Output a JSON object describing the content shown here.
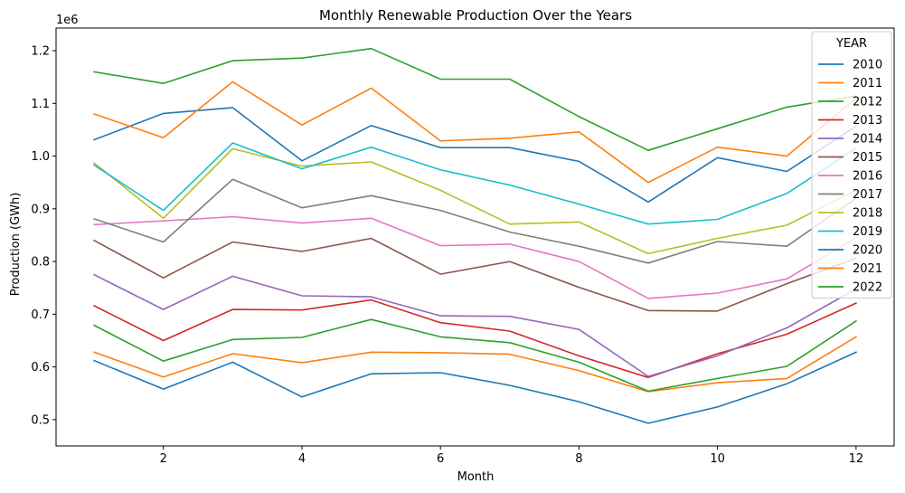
{
  "chart_data": {
    "type": "line",
    "title": "Monthly Renewable Production Over the Years",
    "xlabel": "Month",
    "ylabel": "Production (GWh)",
    "y_offset_label": "1e6",
    "legend_title": "YEAR",
    "legend_position": "top-right",
    "grid": false,
    "xlim": [
      0.45,
      12.55
    ],
    "ylim": [
      450000,
      1243000
    ],
    "x_ticks": [
      2,
      4,
      6,
      8,
      10,
      12
    ],
    "x_tick_labels": [
      "2",
      "4",
      "6",
      "8",
      "10",
      "12"
    ],
    "y_ticks": [
      500000,
      600000,
      700000,
      800000,
      900000,
      1000000,
      1100000,
      1200000
    ],
    "y_tick_labels": [
      "0.5",
      "0.6",
      "0.7",
      "0.8",
      "0.9",
      "1.0",
      "1.1",
      "1.2"
    ],
    "x": [
      1,
      2,
      3,
      4,
      5,
      6,
      7,
      8,
      9,
      10,
      11,
      12
    ],
    "series": [
      {
        "name": "2010",
        "color": "#1f77b4",
        "values": [
          612000,
          558000,
          609000,
          543000,
          587000,
          589000,
          565000,
          534000,
          493000,
          524000,
          568000,
          628000
        ]
      },
      {
        "name": "2011",
        "color": "#ff7f0e",
        "values": [
          628000,
          581000,
          625000,
          608000,
          628000,
          627000,
          624000,
          593000,
          553000,
          570000,
          578000,
          657000
        ]
      },
      {
        "name": "2012",
        "color": "#2ca02c",
        "values": [
          679000,
          611000,
          652000,
          656000,
          690000,
          657000,
          646000,
          609000,
          554000,
          578000,
          601000,
          687000
        ]
      },
      {
        "name": "2013",
        "color": "#d62728",
        "values": [
          716000,
          650000,
          709000,
          708000,
          727000,
          684000,
          668000,
          621000,
          580000,
          625000,
          662000,
          721000
        ]
      },
      {
        "name": "2014",
        "color": "#9467bd",
        "values": [
          775000,
          709000,
          772000,
          735000,
          733000,
          697000,
          696000,
          671000,
          582000,
          621000,
          674000,
          748000
        ]
      },
      {
        "name": "2015",
        "color": "#8c564b",
        "values": [
          840000,
          769000,
          837000,
          819000,
          844000,
          776000,
          800000,
          751000,
          707000,
          706000,
          758000,
          806000
        ]
      },
      {
        "name": "2016",
        "color": "#e377c2",
        "values": [
          870000,
          877000,
          885000,
          873000,
          882000,
          830000,
          833000,
          800000,
          730000,
          740000,
          767000,
          845000
        ]
      },
      {
        "name": "2017",
        "color": "#7f7f7f",
        "values": [
          881000,
          837000,
          956000,
          902000,
          925000,
          897000,
          856000,
          829000,
          797000,
          838000,
          829000,
          920000
        ]
      },
      {
        "name": "2018",
        "color": "#bcbd22",
        "values": [
          987000,
          882000,
          1014000,
          981000,
          989000,
          935000,
          871000,
          875000,
          815000,
          844000,
          869000,
          935000
        ]
      },
      {
        "name": "2019",
        "color": "#17becf",
        "values": [
          983000,
          897000,
          1025000,
          976000,
          1017000,
          974000,
          945000,
          909000,
          871000,
          880000,
          929000,
          1015000
        ]
      },
      {
        "name": "2020",
        "color": "#1f77b4",
        "values": [
          1031000,
          1081000,
          1092000,
          991000,
          1058000,
          1016000,
          1016000,
          990000,
          913000,
          997000,
          971000,
          1057000
        ]
      },
      {
        "name": "2021",
        "color": "#ff7f0e",
        "values": [
          1080000,
          1035000,
          1141000,
          1059000,
          1129000,
          1029000,
          1034000,
          1046000,
          950000,
          1017000,
          1000000,
          1110000
        ]
      },
      {
        "name": "2022",
        "color": "#2ca02c",
        "values": [
          1160000,
          1138000,
          1181000,
          1186000,
          1204000,
          1146000,
          1146000,
          1075000,
          1011000,
          1052000,
          1093000,
          1114000
        ]
      }
    ]
  }
}
